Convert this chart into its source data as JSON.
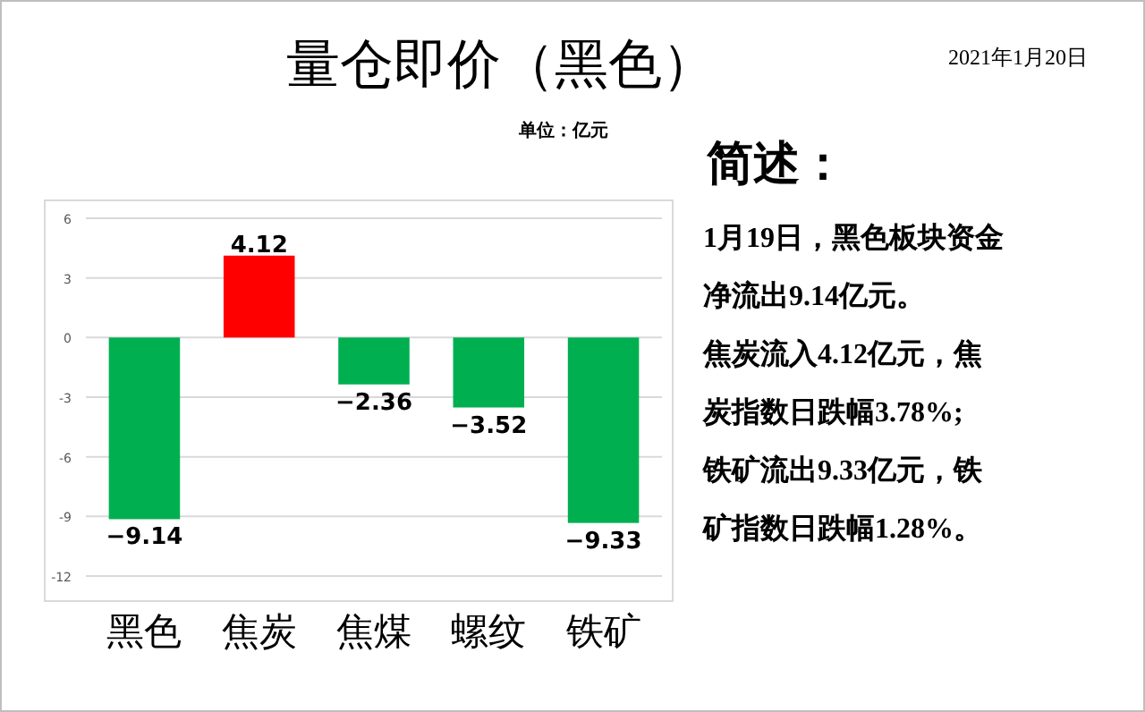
{
  "chart_data": {
    "type": "bar",
    "title": "量仓即价（黑色）",
    "subtitle": "单位：亿元",
    "categories": [
      "黑色",
      "焦炭",
      "焦煤",
      "螺纹",
      "铁矿"
    ],
    "values": [
      -9.14,
      4.12,
      -2.36,
      -3.52,
      -9.33
    ],
    "colors": [
      "#00b050",
      "#ff0000",
      "#00b050",
      "#00b050",
      "#00b050"
    ],
    "ylim": [
      -12,
      6
    ],
    "yticks": [
      6,
      3,
      0,
      -3,
      -6,
      -9,
      -12
    ],
    "grid": "y",
    "data_labels": true,
    "annotations": [
      "2021年1月20日",
      "简述：",
      "1月19日，黑色板块资金",
      "净流出9.14亿元。",
      "焦炭流入4.12亿元，焦",
      "炭指数日跌幅3.78%;",
      "铁矿流出9.33亿元，铁",
      "矿指数日跌幅1.28%。"
    ]
  }
}
